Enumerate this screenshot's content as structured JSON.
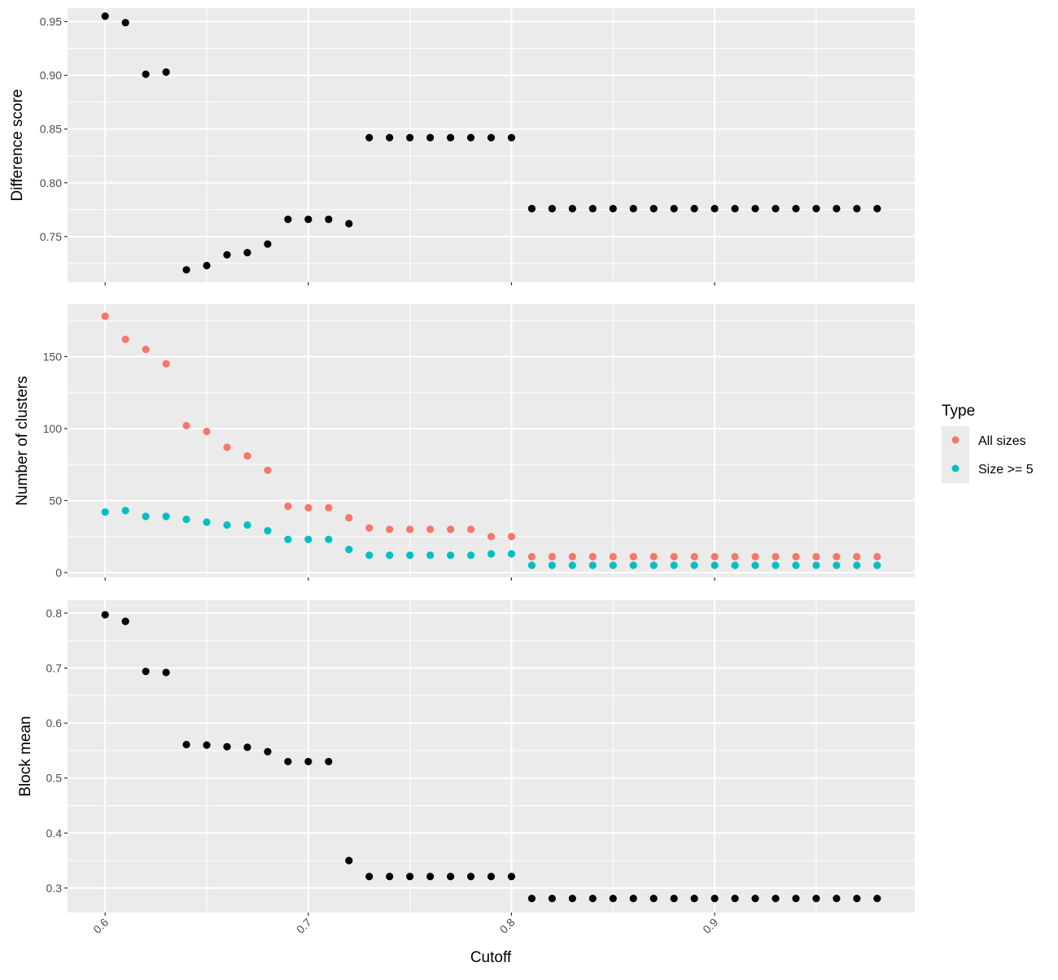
{
  "chart_data": {
    "type": "scatter",
    "xlabel": "Cutoff",
    "xlim": [
      0.5815,
      0.9985
    ],
    "xticks": [
      0.6,
      0.7,
      0.8,
      0.9
    ],
    "xtick_labels": [
      "0.6",
      "0.7",
      "0.8",
      "0.9"
    ],
    "x": [
      0.6,
      0.61,
      0.62,
      0.63,
      0.64,
      0.65,
      0.66,
      0.67,
      0.68,
      0.69,
      0.7,
      0.71,
      0.72,
      0.73,
      0.74,
      0.75,
      0.76,
      0.77,
      0.78,
      0.79,
      0.8,
      0.81,
      0.82,
      0.83,
      0.84,
      0.85,
      0.86,
      0.87,
      0.88,
      0.89,
      0.9,
      0.91,
      0.92,
      0.93,
      0.94,
      0.95,
      0.96,
      0.97,
      0.98
    ],
    "grid": true,
    "legend": {
      "title": "Type",
      "position": "right",
      "entries": [
        {
          "label": "All sizes",
          "color": "#F8766D"
        },
        {
          "label": "Size >= 5",
          "color": "#00BFC4"
        }
      ]
    },
    "panels": [
      {
        "ylabel": "Difference score",
        "ylim": [
          0.7075,
          0.9625
        ],
        "yticks": [
          0.75,
          0.8,
          0.85,
          0.9,
          0.95
        ],
        "ytick_labels": [
          "0.75",
          "0.80",
          "0.85",
          "0.90",
          "0.95"
        ],
        "series": [
          {
            "color": "#000000",
            "values": [
              0.955,
              0.949,
              0.901,
              0.903,
              0.719,
              0.723,
              0.733,
              0.735,
              0.743,
              0.766,
              0.766,
              0.766,
              0.762,
              0.842,
              0.842,
              0.842,
              0.842,
              0.842,
              0.842,
              0.842,
              0.842,
              0.776,
              0.776,
              0.776,
              0.776,
              0.776,
              0.776,
              0.776,
              0.776,
              0.776,
              0.776,
              0.776,
              0.776,
              0.776,
              0.776,
              0.776,
              0.776,
              0.776,
              0.776
            ]
          }
        ]
      },
      {
        "ylabel": "Number of clusters",
        "ylim": [
          -3.4,
          186.4
        ],
        "yticks": [
          0,
          50,
          100,
          150
        ],
        "ytick_labels": [
          "0",
          "50",
          "100",
          "150"
        ],
        "series": [
          {
            "name": "All sizes",
            "color": "#F8766D",
            "values": [
              178,
              162,
              155,
              145,
              102,
              98,
              87,
              81,
              71,
              46,
              45,
              45,
              38,
              31,
              30,
              30,
              30,
              30,
              30,
              25,
              25,
              11,
              11,
              11,
              11,
              11,
              11,
              11,
              11,
              11,
              11,
              11,
              11,
              11,
              11,
              11,
              11,
              11,
              11
            ]
          },
          {
            "name": "Size >= 5",
            "color": "#00BFC4",
            "values": [
              42,
              43,
              39,
              39,
              37,
              35,
              33,
              33,
              29,
              23,
              23,
              23,
              16,
              12,
              12,
              12,
              12,
              12,
              12,
              13,
              13,
              5,
              5,
              5,
              5,
              5,
              5,
              5,
              5,
              5,
              5,
              5,
              5,
              5,
              5,
              5,
              5,
              5,
              5
            ]
          }
        ]
      },
      {
        "ylabel": "Block mean",
        "ylim": [
          0.2555,
          0.8235
        ],
        "yticks": [
          0.3,
          0.4,
          0.5,
          0.6,
          0.7,
          0.8
        ],
        "ytick_labels": [
          "0.3",
          "0.4",
          "0.5",
          "0.6",
          "0.7",
          "0.8"
        ],
        "series": [
          {
            "color": "#000000",
            "values": [
              0.797,
              0.785,
              0.694,
              0.692,
              0.561,
              0.56,
              0.557,
              0.556,
              0.548,
              0.53,
              0.53,
              0.53,
              0.35,
              0.321,
              0.321,
              0.321,
              0.321,
              0.321,
              0.321,
              0.321,
              0.321,
              0.281,
              0.281,
              0.281,
              0.281,
              0.281,
              0.281,
              0.281,
              0.281,
              0.281,
              0.281,
              0.281,
              0.281,
              0.281,
              0.281,
              0.281,
              0.281,
              0.281,
              0.281
            ]
          }
        ]
      }
    ]
  }
}
